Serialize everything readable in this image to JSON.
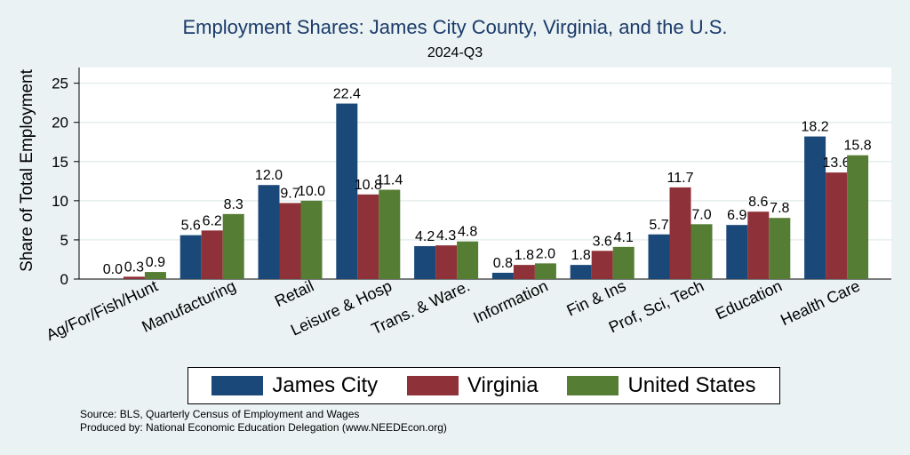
{
  "chart_data": {
    "type": "bar",
    "title": "Employment Shares: James City County, Virginia, and the U.S.",
    "subtitle": "2024-Q3",
    "ylabel": "Share of Total Employment",
    "xlabel": "",
    "ylim": [
      0,
      27
    ],
    "yticks": [
      0,
      5,
      10,
      15,
      20,
      25
    ],
    "grid": true,
    "legend_position": "bottom",
    "categories": [
      "Ag/For/Fish/Hunt",
      "Manufacturing",
      "Retail",
      "Leisure & Hosp",
      "Trans. & Ware.",
      "Information",
      "Fin & Ins",
      "Prof, Sci, Tech",
      "Education",
      "Health Care"
    ],
    "series": [
      {
        "name": "James City",
        "color": "#1a4878",
        "values": [
          0.0,
          5.6,
          12.0,
          22.4,
          4.2,
          0.8,
          1.8,
          5.7,
          6.9,
          18.2
        ],
        "labels": [
          "0.0",
          "5.6",
          "12.0",
          "22.4",
          "4.2",
          "0.8",
          "1.8",
          "5.7",
          "6.9",
          "18.2"
        ]
      },
      {
        "name": "Virginia",
        "color": "#8f3138",
        "values": [
          0.3,
          6.2,
          9.7,
          10.8,
          4.3,
          1.8,
          3.6,
          11.7,
          8.6,
          13.6
        ],
        "labels": [
          "0.3",
          "6.2",
          "9.7",
          "10.8",
          "4.3",
          "1.8",
          "3.6",
          "11.7",
          "8.6",
          "13.6"
        ]
      },
      {
        "name": "United States",
        "color": "#567d34",
        "values": [
          0.9,
          8.3,
          10.0,
          11.4,
          4.8,
          2.0,
          4.1,
          7.0,
          7.8,
          15.8
        ],
        "labels": [
          "0.9",
          "8.3",
          "10.0",
          "11.4",
          "4.8",
          "2.0",
          "4.1",
          "7.0",
          "7.8",
          "15.8"
        ]
      }
    ]
  },
  "footer": {
    "source": "Source: BLS, Quarterly Census of Employment and Wages",
    "produced_by": "Produced by: National Economic Education Delegation (www.NEEDEcon.org)"
  }
}
